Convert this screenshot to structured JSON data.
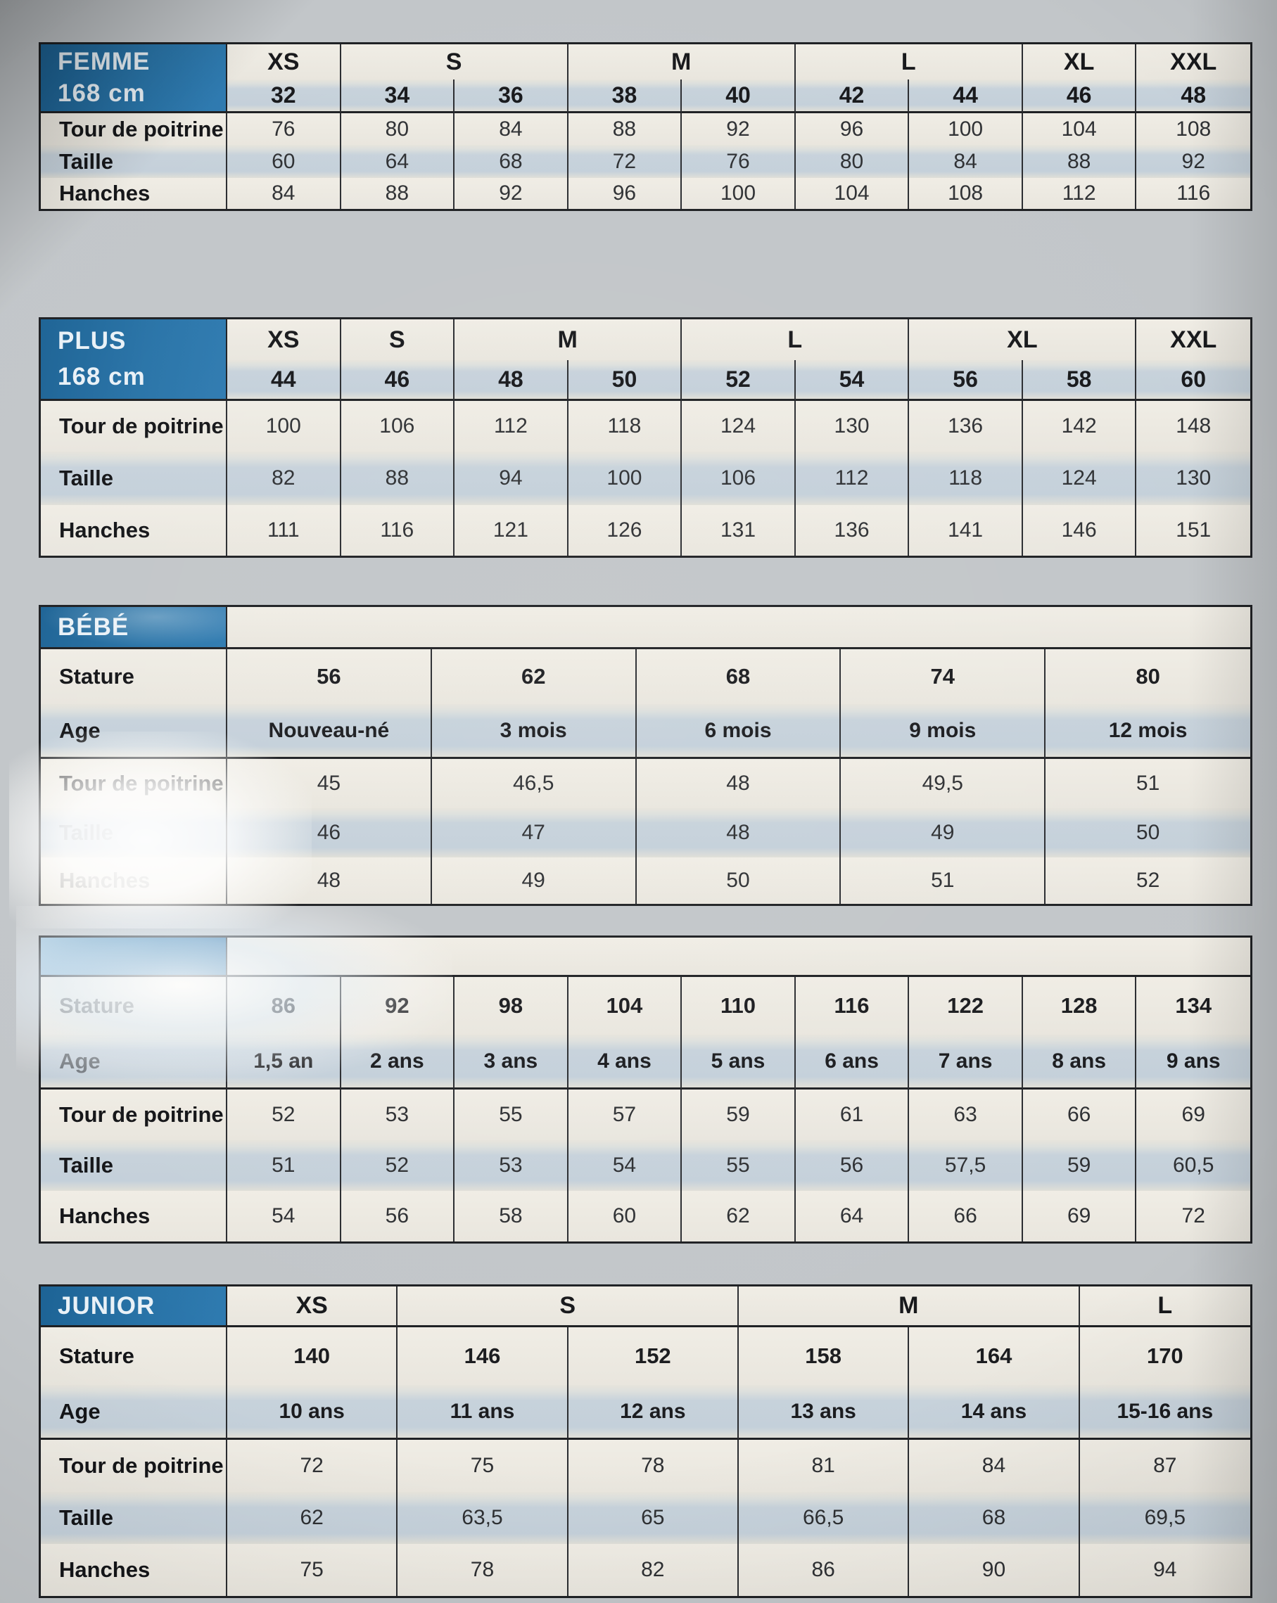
{
  "colors": {
    "page_bg": "#c2c6c9",
    "header_blue": "#2571a4",
    "cream": "#ece9e1",
    "band": "#c7d2db",
    "border": "#1e2023",
    "title_text": "#e9f1f7"
  },
  "tables": [
    {
      "name": "femme",
      "margin_top": 60,
      "cols": 9,
      "title_lines": [
        "FEMME",
        "168 cm"
      ],
      "title_rowspan": 2,
      "rows": [
        {
          "kind": "sizes-letters",
          "h": 50,
          "band": false,
          "hline": false,
          "cells": [
            {
              "t": "XS",
              "span": 1
            },
            {
              "t": "S",
              "span": 2
            },
            {
              "t": "M",
              "span": 2
            },
            {
              "t": "L",
              "span": 2
            },
            {
              "t": "XL",
              "span": 1
            },
            {
              "t": "XXL",
              "span": 1
            }
          ]
        },
        {
          "kind": "sizes-numbers",
          "h": 48,
          "band": true,
          "hline": true,
          "cells": [
            {
              "t": "32"
            },
            {
              "t": "34"
            },
            {
              "t": "36"
            },
            {
              "t": "38"
            },
            {
              "t": "40"
            },
            {
              "t": "42"
            },
            {
              "t": "44"
            },
            {
              "t": "46"
            },
            {
              "t": "48"
            }
          ]
        },
        {
          "kind": "measure",
          "label": "Tour de poitrine",
          "h": 45,
          "band": false,
          "hline": false,
          "cells": [
            {
              "t": "76"
            },
            {
              "t": "80"
            },
            {
              "t": "84"
            },
            {
              "t": "88"
            },
            {
              "t": "92"
            },
            {
              "t": "96"
            },
            {
              "t": "100"
            },
            {
              "t": "104"
            },
            {
              "t": "108"
            }
          ]
        },
        {
          "kind": "measure",
          "label": "Taille",
          "h": 47,
          "band": true,
          "hline": false,
          "cells": [
            {
              "t": "60"
            },
            {
              "t": "64"
            },
            {
              "t": "68"
            },
            {
              "t": "72"
            },
            {
              "t": "76"
            },
            {
              "t": "80"
            },
            {
              "t": "84"
            },
            {
              "t": "88"
            },
            {
              "t": "92"
            }
          ]
        },
        {
          "kind": "measure",
          "label": "Hanches",
          "h": 44,
          "band": false,
          "hline": false,
          "cells": [
            {
              "t": "84"
            },
            {
              "t": "88"
            },
            {
              "t": "92"
            },
            {
              "t": "96"
            },
            {
              "t": "100"
            },
            {
              "t": "104"
            },
            {
              "t": "108"
            },
            {
              "t": "112"
            },
            {
              "t": "116"
            }
          ]
        }
      ]
    },
    {
      "name": "plus",
      "margin_top": 151,
      "cols": 9,
      "title_lines": [
        "PLUS",
        "168 cm"
      ],
      "title_rowspan": 2,
      "rows": [
        {
          "kind": "sizes-letters",
          "h": 58,
          "band": false,
          "hline": false,
          "cells": [
            {
              "t": "XS",
              "span": 1
            },
            {
              "t": "S",
              "span": 1
            },
            {
              "t": "M",
              "span": 2
            },
            {
              "t": "L",
              "span": 2
            },
            {
              "t": "XL",
              "span": 2
            },
            {
              "t": "XXL",
              "span": 1
            }
          ]
        },
        {
          "kind": "sizes-numbers",
          "h": 58,
          "band": true,
          "hline": true,
          "cells": [
            {
              "t": "44"
            },
            {
              "t": "46"
            },
            {
              "t": "48"
            },
            {
              "t": "50"
            },
            {
              "t": "52"
            },
            {
              "t": "54"
            },
            {
              "t": "56"
            },
            {
              "t": "58"
            },
            {
              "t": "60"
            }
          ]
        },
        {
          "kind": "measure",
          "label": "Tour de poitrine",
          "h": 72,
          "band": false,
          "hline": false,
          "cells": [
            {
              "t": "100"
            },
            {
              "t": "106"
            },
            {
              "t": "112"
            },
            {
              "t": "118"
            },
            {
              "t": "124"
            },
            {
              "t": "130"
            },
            {
              "t": "136"
            },
            {
              "t": "142"
            },
            {
              "t": "148"
            }
          ]
        },
        {
          "kind": "measure",
          "label": "Taille",
          "h": 76,
          "band": true,
          "hline": false,
          "cells": [
            {
              "t": "82"
            },
            {
              "t": "88"
            },
            {
              "t": "94"
            },
            {
              "t": "100"
            },
            {
              "t": "106"
            },
            {
              "t": "112"
            },
            {
              "t": "118"
            },
            {
              "t": "124"
            },
            {
              "t": "130"
            }
          ]
        },
        {
          "kind": "measure",
          "label": "Hanches",
          "h": 72,
          "band": false,
          "hline": false,
          "cells": [
            {
              "t": "111"
            },
            {
              "t": "116"
            },
            {
              "t": "121"
            },
            {
              "t": "126"
            },
            {
              "t": "131"
            },
            {
              "t": "136"
            },
            {
              "t": "141"
            },
            {
              "t": "146"
            },
            {
              "t": "151"
            }
          ]
        }
      ]
    },
    {
      "name": "bebe",
      "margin_top": 67,
      "cols": 5,
      "title_lines": [
        "BÉBÉ"
      ],
      "title_rowspan": 1,
      "sheen": true,
      "glare": "labels",
      "rows": [
        {
          "kind": "strip",
          "h": 60,
          "band": false,
          "hline": true,
          "cells": [
            {
              "t": "",
              "span": 5
            }
          ]
        },
        {
          "kind": "stature",
          "label": "Stature",
          "h": 78,
          "band": false,
          "hline": false,
          "cells": [
            {
              "t": "56"
            },
            {
              "t": "62"
            },
            {
              "t": "68"
            },
            {
              "t": "74"
            },
            {
              "t": "80"
            }
          ]
        },
        {
          "kind": "age",
          "label": "Age",
          "h": 78,
          "band": true,
          "hline": true,
          "cells": [
            {
              "t": "Nouveau-né"
            },
            {
              "t": "3 mois"
            },
            {
              "t": "6 mois"
            },
            {
              "t": "9 mois"
            },
            {
              "t": "12 mois"
            }
          ]
        },
        {
          "kind": "measure",
          "label": "Tour de poitrine",
          "label_opacity": 0.8,
          "h": 70,
          "band": false,
          "hline": false,
          "cells": [
            {
              "t": "45"
            },
            {
              "t": "46,5"
            },
            {
              "t": "48"
            },
            {
              "t": "49,5"
            },
            {
              "t": "51"
            }
          ]
        },
        {
          "kind": "measure",
          "label": "Taille",
          "label_opacity": 0.28,
          "h": 70,
          "band": true,
          "hline": false,
          "cells": [
            {
              "t": "46"
            },
            {
              "t": "47"
            },
            {
              "t": "48"
            },
            {
              "t": "49"
            },
            {
              "t": "50"
            }
          ]
        },
        {
          "kind": "measure",
          "label": "Hanches",
          "label_opacity": 0.32,
          "h": 66,
          "band": false,
          "hline": false,
          "cells": [
            {
              "t": "48"
            },
            {
              "t": "49"
            },
            {
              "t": "50"
            },
            {
              "t": "51"
            },
            {
              "t": "52"
            }
          ]
        }
      ]
    },
    {
      "name": "enfant",
      "margin_top": 42,
      "cols": 9,
      "title_lines": [],
      "title_rowspan": 1,
      "glare": "title",
      "rows": [
        {
          "kind": "strip",
          "h": 56,
          "band": false,
          "hline": true,
          "cells": [
            {
              "t": "",
              "span": 9
            }
          ]
        },
        {
          "kind": "stature",
          "label": "Stature",
          "label_opacity": 0.55,
          "h": 82,
          "band": false,
          "hline": false,
          "cells": [
            {
              "t": "86"
            },
            {
              "t": "92"
            },
            {
              "t": "98"
            },
            {
              "t": "104"
            },
            {
              "t": "110"
            },
            {
              "t": "116"
            },
            {
              "t": "122"
            },
            {
              "t": "128"
            },
            {
              "t": "134"
            }
          ]
        },
        {
          "kind": "age",
          "label": "Age",
          "label_opacity": 0.5,
          "h": 78,
          "band": true,
          "hline": true,
          "cells": [
            {
              "t": "1,5 an"
            },
            {
              "t": "2 ans"
            },
            {
              "t": "3 ans"
            },
            {
              "t": "4 ans"
            },
            {
              "t": "5 ans"
            },
            {
              "t": "6 ans"
            },
            {
              "t": "7 ans"
            },
            {
              "t": "8 ans"
            },
            {
              "t": "9 ans"
            }
          ]
        },
        {
          "kind": "measure",
          "label": "Tour de poitrine",
          "h": 72,
          "band": false,
          "hline": false,
          "cells": [
            {
              "t": "52"
            },
            {
              "t": "53"
            },
            {
              "t": "55"
            },
            {
              "t": "57"
            },
            {
              "t": "59"
            },
            {
              "t": "61"
            },
            {
              "t": "63"
            },
            {
              "t": "66"
            },
            {
              "t": "69"
            }
          ]
        },
        {
          "kind": "measure",
          "label": "Taille",
          "h": 72,
          "band": true,
          "hline": false,
          "cells": [
            {
              "t": "51"
            },
            {
              "t": "52"
            },
            {
              "t": "53"
            },
            {
              "t": "54"
            },
            {
              "t": "55"
            },
            {
              "t": "56"
            },
            {
              "t": "57,5"
            },
            {
              "t": "59"
            },
            {
              "t": "60,5"
            }
          ]
        },
        {
          "kind": "measure",
          "label": "Hanches",
          "h": 72,
          "band": false,
          "hline": false,
          "cells": [
            {
              "t": "54"
            },
            {
              "t": "56"
            },
            {
              "t": "58"
            },
            {
              "t": "60"
            },
            {
              "t": "62"
            },
            {
              "t": "64"
            },
            {
              "t": "66"
            },
            {
              "t": "69"
            },
            {
              "t": "72"
            }
          ]
        }
      ]
    },
    {
      "name": "junior",
      "margin_top": 58,
      "cols": 6,
      "title_lines": [
        "JUNIOR"
      ],
      "title_rowspan": 1,
      "rows": [
        {
          "kind": "sizes-letters",
          "h": 58,
          "band": false,
          "hline": true,
          "cells": [
            {
              "t": "XS",
              "span": 1
            },
            {
              "t": "S",
              "span": 2
            },
            {
              "t": "M",
              "span": 2
            },
            {
              "t": "L",
              "span": 1
            }
          ]
        },
        {
          "kind": "stature",
          "label": "Stature",
          "h": 82,
          "band": false,
          "hline": false,
          "cells": [
            {
              "t": "140"
            },
            {
              "t": "146"
            },
            {
              "t": "152"
            },
            {
              "t": "158"
            },
            {
              "t": "164"
            },
            {
              "t": "170"
            }
          ]
        },
        {
          "kind": "age",
          "label": "Age",
          "h": 78,
          "band": true,
          "hline": true,
          "cells": [
            {
              "t": "10 ans"
            },
            {
              "t": "11 ans"
            },
            {
              "t": "12 ans"
            },
            {
              "t": "13 ans"
            },
            {
              "t": "14 ans"
            },
            {
              "t": "15-16 ans"
            }
          ]
        },
        {
          "kind": "measure",
          "label": "Tour de poitrine",
          "h": 74,
          "band": false,
          "hline": false,
          "cells": [
            {
              "t": "72"
            },
            {
              "t": "75"
            },
            {
              "t": "78"
            },
            {
              "t": "81"
            },
            {
              "t": "84"
            },
            {
              "t": "87"
            }
          ]
        },
        {
          "kind": "measure",
          "label": "Taille",
          "h": 74,
          "band": true,
          "hline": false,
          "cells": [
            {
              "t": "62"
            },
            {
              "t": "63,5"
            },
            {
              "t": "65"
            },
            {
              "t": "66,5"
            },
            {
              "t": "68"
            },
            {
              "t": "69,5"
            }
          ]
        },
        {
          "kind": "measure",
          "label": "Hanches",
          "h": 74,
          "band": false,
          "hline": false,
          "cells": [
            {
              "t": "75"
            },
            {
              "t": "78"
            },
            {
              "t": "82"
            },
            {
              "t": "86"
            },
            {
              "t": "90"
            },
            {
              "t": "94"
            }
          ]
        }
      ]
    }
  ]
}
